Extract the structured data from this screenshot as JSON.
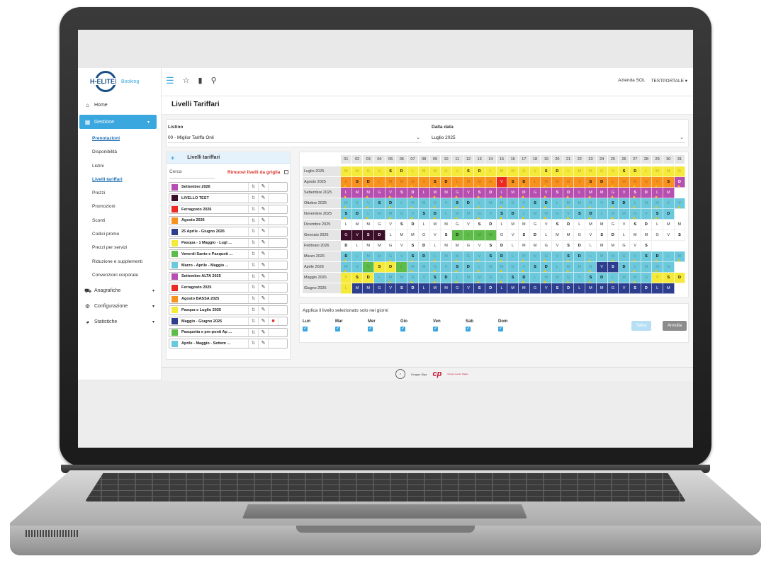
{
  "brand": {
    "logo_text": "H-ELITE",
    "logo_sub": "Booking"
  },
  "topbar": {
    "icons": [
      "menu-icon",
      "star-icon",
      "bookmark-icon",
      "search-icon"
    ],
    "company": "Azienda SOL",
    "user": "TESTPORTALE ▾"
  },
  "sidebar": {
    "home": "Home",
    "gestione": "Gestione",
    "sub": [
      "Prenotazioni",
      "Disponibilità",
      "Listini",
      "Livelli tariffari",
      "Prezzi",
      "Promozioni",
      "Sconti",
      "Codici promo",
      "Prezzi per servizi",
      "Riduzione e supplementi",
      "Convenzioni corporate"
    ],
    "anagrafiche": "Anagrafiche",
    "configurazione": "Configurazione",
    "statistiche": "Statistiche"
  },
  "page": {
    "title": "Livelli Tariffari"
  },
  "filters": {
    "listino_label": "Listino",
    "listino_value": "00 - Miglior Tariffa Onli",
    "data_label": "Dalla data",
    "data_value": "Luglio 2025"
  },
  "levels": {
    "header": "Livelli tariffari",
    "search_label": "Cerca",
    "remove_label": "Rimuovi livelli da griglia",
    "items": [
      {
        "name": "Settembre 2026",
        "color": "#b64fb0"
      },
      {
        "name": "LIVELLO TEST",
        "color": "#3b0f2a"
      },
      {
        "name": "Ferragosto 2026",
        "color": "#ea2a23"
      },
      {
        "name": "Agosto 2026",
        "color": "#f7921e"
      },
      {
        "name": "25 Aprile - Giugno 2026",
        "color": "#2d3e8f"
      },
      {
        "name": "Pasqua - 1 Maggio - Lugl ...",
        "color": "#f5e93a"
      },
      {
        "name": "Venerdi Santo e Pasquett ...",
        "color": "#5ebd4a"
      },
      {
        "name": "Marzo - Aprile - Maggio ...",
        "color": "#6cc9db"
      },
      {
        "name": "Settembre ALTA 2025",
        "color": "#b64fb0"
      },
      {
        "name": "Ferragosto 2025",
        "color": "#ea2a23"
      },
      {
        "name": "Agosto BASSA 2025",
        "color": "#f7921e"
      },
      {
        "name": "Pasqua e Luglio 2025",
        "color": "#f5e93a"
      },
      {
        "name": "Maggio - Giugno 2025",
        "color": "#2d3e8f"
      },
      {
        "name": "Pasquetta e pre-ponti Ap ...",
        "color": "#5ebd4a"
      },
      {
        "name": "Aprile - Maggio - Settem ...",
        "color": "#6cc9db"
      }
    ]
  },
  "calendar": {
    "days": [
      "01",
      "02",
      "03",
      "04",
      "05",
      "06",
      "07",
      "08",
      "09",
      "10",
      "11",
      "12",
      "13",
      "14",
      "15",
      "16",
      "17",
      "18",
      "19",
      "20",
      "21",
      "22",
      "23",
      "24",
      "25",
      "26",
      "27",
      "28",
      "29",
      "30",
      "31"
    ],
    "months": [
      {
        "label": "Luglio 2025",
        "start": 1,
        "len": 31
      },
      {
        "label": "Agosto 2025",
        "start": 4,
        "len": 31
      },
      {
        "label": "Settembre 2025",
        "start": 0,
        "len": 30
      },
      {
        "label": "Ottobre 2025",
        "start": 2,
        "len": 31
      },
      {
        "label": "Novembre 2025",
        "start": 5,
        "len": 30
      },
      {
        "label": "Dicembre 2025",
        "start": 0,
        "len": 31
      },
      {
        "label": "Gennaio 2026",
        "start": 3,
        "len": 31
      },
      {
        "label": "Febbraio 2026",
        "start": 6,
        "len": 28
      },
      {
        "label": "Marzo 2026",
        "start": 6,
        "len": 31
      },
      {
        "label": "Aprile 2026",
        "start": 2,
        "len": 30
      },
      {
        "label": "Maggio 2026",
        "start": 4,
        "len": 31
      },
      {
        "label": "Giugno 2026",
        "start": 0,
        "len": 30
      }
    ],
    "weekdays": [
      "L",
      "M",
      "M",
      "G",
      "V",
      "S",
      "D"
    ]
  },
  "apply": {
    "title": "Applica il livello selezionato solo nei giorni",
    "days": [
      "Lun",
      "Mar",
      "Mer",
      "Gio",
      "Ven",
      "Sab",
      "Dom"
    ],
    "save": "Salva",
    "cancel": "Annulla"
  },
  "footer": {
    "gruppo": "Gruppo Sipa",
    "cp": "cp",
    "cp_sub": "Gruppo Centro Paghe"
  }
}
